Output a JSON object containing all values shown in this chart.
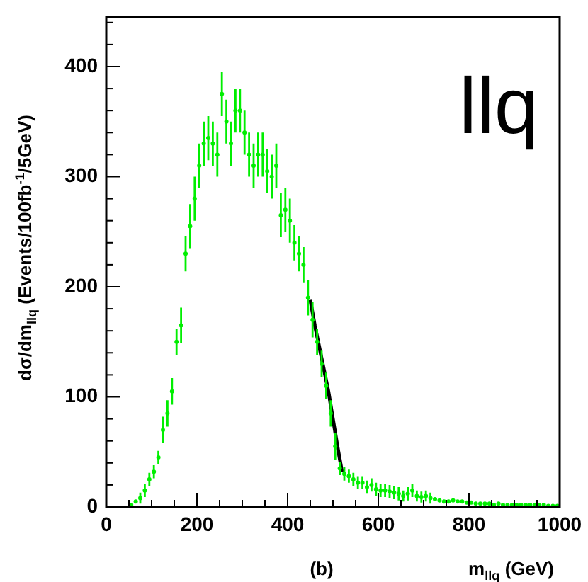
{
  "chart_data": {
    "type": "scatter",
    "xlabel": "m$_{llq}$ (GeV)",
    "ylabel": "dσ/dm$_{llq}$ (Events/100fb$^{-1}$/5GeV)",
    "annotations": [
      "llq",
      "(b)"
    ],
    "xlim": [
      0,
      1000
    ],
    "ylim": [
      0,
      445
    ],
    "xticks": [
      0,
      {
        "value": 50,
        "label": null
      },
      {
        "value": 100,
        "label": null
      },
      {
        "value": 150,
        "label": null
      },
      200,
      {
        "value": 250,
        "label": null
      },
      {
        "value": 300,
        "label": null
      },
      {
        "value": 350,
        "label": null
      },
      400,
      {
        "value": 450,
        "label": null
      },
      {
        "value": 500,
        "label": null
      },
      {
        "value": 550,
        "label": null
      },
      600,
      {
        "value": 650,
        "label": null
      },
      {
        "value": 700,
        "label": null
      },
      {
        "value": 750,
        "label": null
      },
      800,
      {
        "value": 850,
        "label": null
      },
      {
        "value": 900,
        "label": null
      },
      {
        "value": 950,
        "label": null
      },
      1000
    ],
    "yticks": [
      0,
      {
        "value": 20,
        "label": null
      },
      {
        "value": 40,
        "label": null
      },
      {
        "value": 60,
        "label": null
      },
      {
        "value": 80,
        "label": null
      },
      100,
      {
        "value": 120,
        "label": null
      },
      {
        "value": 140,
        "label": null
      },
      {
        "value": 160,
        "label": null
      },
      {
        "value": 180,
        "label": null
      },
      200,
      {
        "value": 220,
        "label": null
      },
      {
        "value": 240,
        "label": null
      },
      {
        "value": 260,
        "label": null
      },
      {
        "value": 280,
        "label": null
      },
      300,
      {
        "value": 320,
        "label": null
      },
      {
        "value": 340,
        "label": null
      },
      {
        "value": 360,
        "label": null
      },
      {
        "value": 380,
        "label": null
      },
      400,
      {
        "value": 420,
        "label": null
      },
      {
        "value": 440,
        "label": null
      }
    ],
    "grid": false,
    "legend": false,
    "series": [
      {
        "color": "#00ee00",
        "marker": "circle",
        "x": [
          55,
          65,
          75,
          85,
          95,
          105,
          115,
          125,
          135,
          145,
          155,
          165,
          175,
          185,
          195,
          205,
          215,
          225,
          235,
          245,
          255,
          265,
          275,
          285,
          295,
          305,
          315,
          325,
          335,
          345,
          355,
          365,
          375,
          385,
          395,
          405,
          415,
          425,
          435,
          445,
          455,
          465,
          475,
          485,
          495,
          505,
          515,
          525,
          535,
          545,
          555,
          565,
          575,
          585,
          595,
          605,
          615,
          625,
          635,
          645,
          655,
          665,
          675,
          685,
          695,
          705,
          715,
          725,
          735,
          745,
          755,
          765,
          775,
          785,
          795,
          805,
          815,
          825,
          835,
          845,
          855,
          865,
          875,
          885,
          895,
          905,
          915,
          925,
          935,
          945,
          955,
          965,
          975,
          985,
          995
        ],
        "values": [
          2,
          5,
          8,
          15,
          25,
          32,
          45,
          70,
          85,
          105,
          150,
          165,
          230,
          255,
          280,
          310,
          330,
          335,
          330,
          320,
          375,
          350,
          330,
          360,
          360,
          340,
          320,
          310,
          320,
          320,
          305,
          300,
          310,
          265,
          270,
          260,
          240,
          230,
          220,
          190,
          170,
          150,
          130,
          110,
          85,
          55,
          35,
          30,
          28,
          25,
          22,
          22,
          18,
          20,
          16,
          15,
          15,
          14,
          13,
          12,
          10,
          12,
          15,
          10,
          9,
          10,
          8,
          7,
          6,
          5,
          5,
          6,
          5,
          5,
          4,
          4,
          3,
          3,
          3,
          3,
          2,
          3,
          2,
          2,
          2,
          2,
          2,
          2,
          2,
          2,
          2,
          2,
          1,
          1,
          1
        ],
        "errors": [
          null,
          null,
          5,
          6,
          6,
          6,
          6,
          12,
          12,
          12,
          12,
          16,
          16,
          20,
          20,
          20,
          20,
          20,
          20,
          20,
          20,
          20,
          20,
          20,
          20,
          20,
          20,
          20,
          20,
          20,
          20,
          20,
          20,
          20,
          20,
          20,
          16,
          16,
          16,
          16,
          16,
          12,
          12,
          12,
          12,
          12,
          6,
          6,
          6,
          6,
          6,
          6,
          6,
          6,
          6,
          6,
          6,
          6,
          6,
          6,
          5,
          6,
          6,
          5,
          5,
          5,
          5,
          null,
          null,
          null,
          null,
          null,
          null,
          null,
          null,
          null,
          null,
          null,
          null,
          null,
          null,
          null,
          null,
          null,
          null,
          null,
          null,
          null,
          null,
          null,
          null,
          null,
          null,
          null,
          null
        ],
        "xerrors": [
          2.5,
          2.5,
          2.5,
          2.5,
          2.5,
          2.5,
          2.5,
          2.5,
          2.5,
          2.5,
          2.5,
          2.5,
          2.5,
          2.5,
          2.5,
          2.5,
          2.5,
          2.5,
          2.5,
          2.5,
          2.5,
          2.5,
          2.5,
          2.5,
          2.5,
          2.5,
          2.5,
          2.5,
          2.5,
          2.5,
          2.5,
          2.5,
          2.5,
          2.5,
          2.5,
          2.5,
          2.5,
          2.5,
          2.5,
          2.5,
          2.5,
          2.5,
          2.5,
          2.5,
          2.5,
          2.5,
          2.5,
          2.5,
          2.5,
          2.5,
          2.5,
          2.5,
          2.5,
          2.5,
          2.5,
          2.5,
          2.5,
          2.5,
          2.5,
          2.5,
          2.5,
          2.5,
          2.5,
          2.5,
          2.5,
          2.5,
          2.5,
          2.5,
          2.5,
          2.5,
          2.5,
          2.5,
          2.5,
          2.5,
          2.5,
          2.5,
          2.5,
          2.5,
          2.5,
          2.5,
          2.5,
          2.5,
          2.5,
          2.5,
          2.5,
          2.5,
          2.5,
          2.5,
          2.5,
          2.5,
          2.5,
          2.5,
          2.5,
          2.5,
          2.5
        ]
      },
      {
        "type": "line",
        "color": "#000000",
        "x": [
          450,
          460,
          470,
          480,
          490,
          500,
          510,
          520
        ],
        "values": [
          188,
          165,
          145,
          125,
          105,
          80,
          55,
          32
        ]
      }
    ]
  }
}
